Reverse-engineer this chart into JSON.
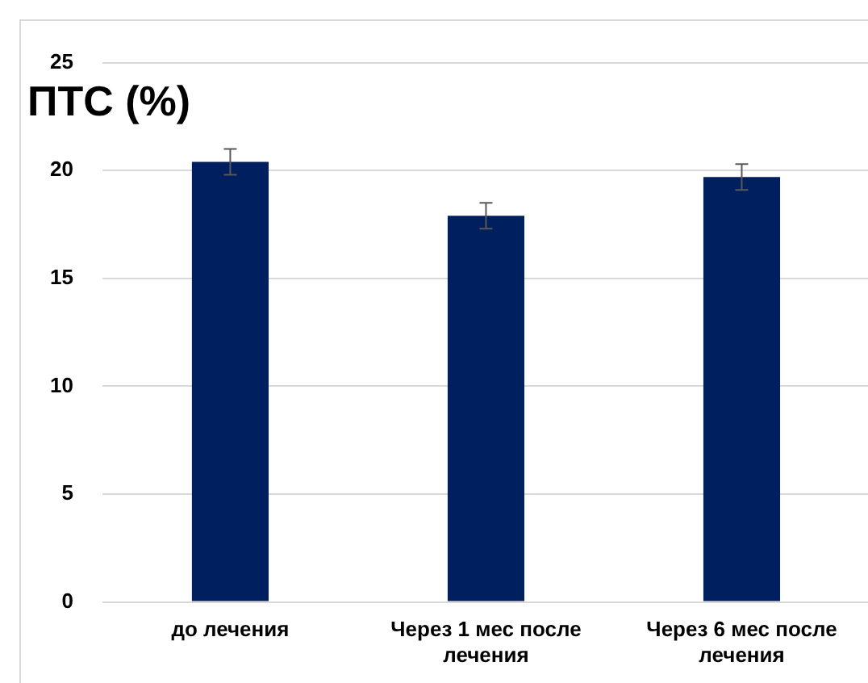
{
  "chart_data": {
    "type": "bar",
    "title": "ПТС (%)",
    "categories": [
      "до лечения",
      "Через 1 мес после лечения",
      "Через 6 мес после лечения"
    ],
    "values": [
      20.4,
      17.9,
      19.7
    ],
    "errors": [
      0.6,
      0.6,
      0.6
    ],
    "color": "#001f5f",
    "ylim": [
      0,
      25
    ],
    "yticks": [
      0,
      5,
      10,
      15,
      20,
      25
    ],
    "grid": "y"
  }
}
